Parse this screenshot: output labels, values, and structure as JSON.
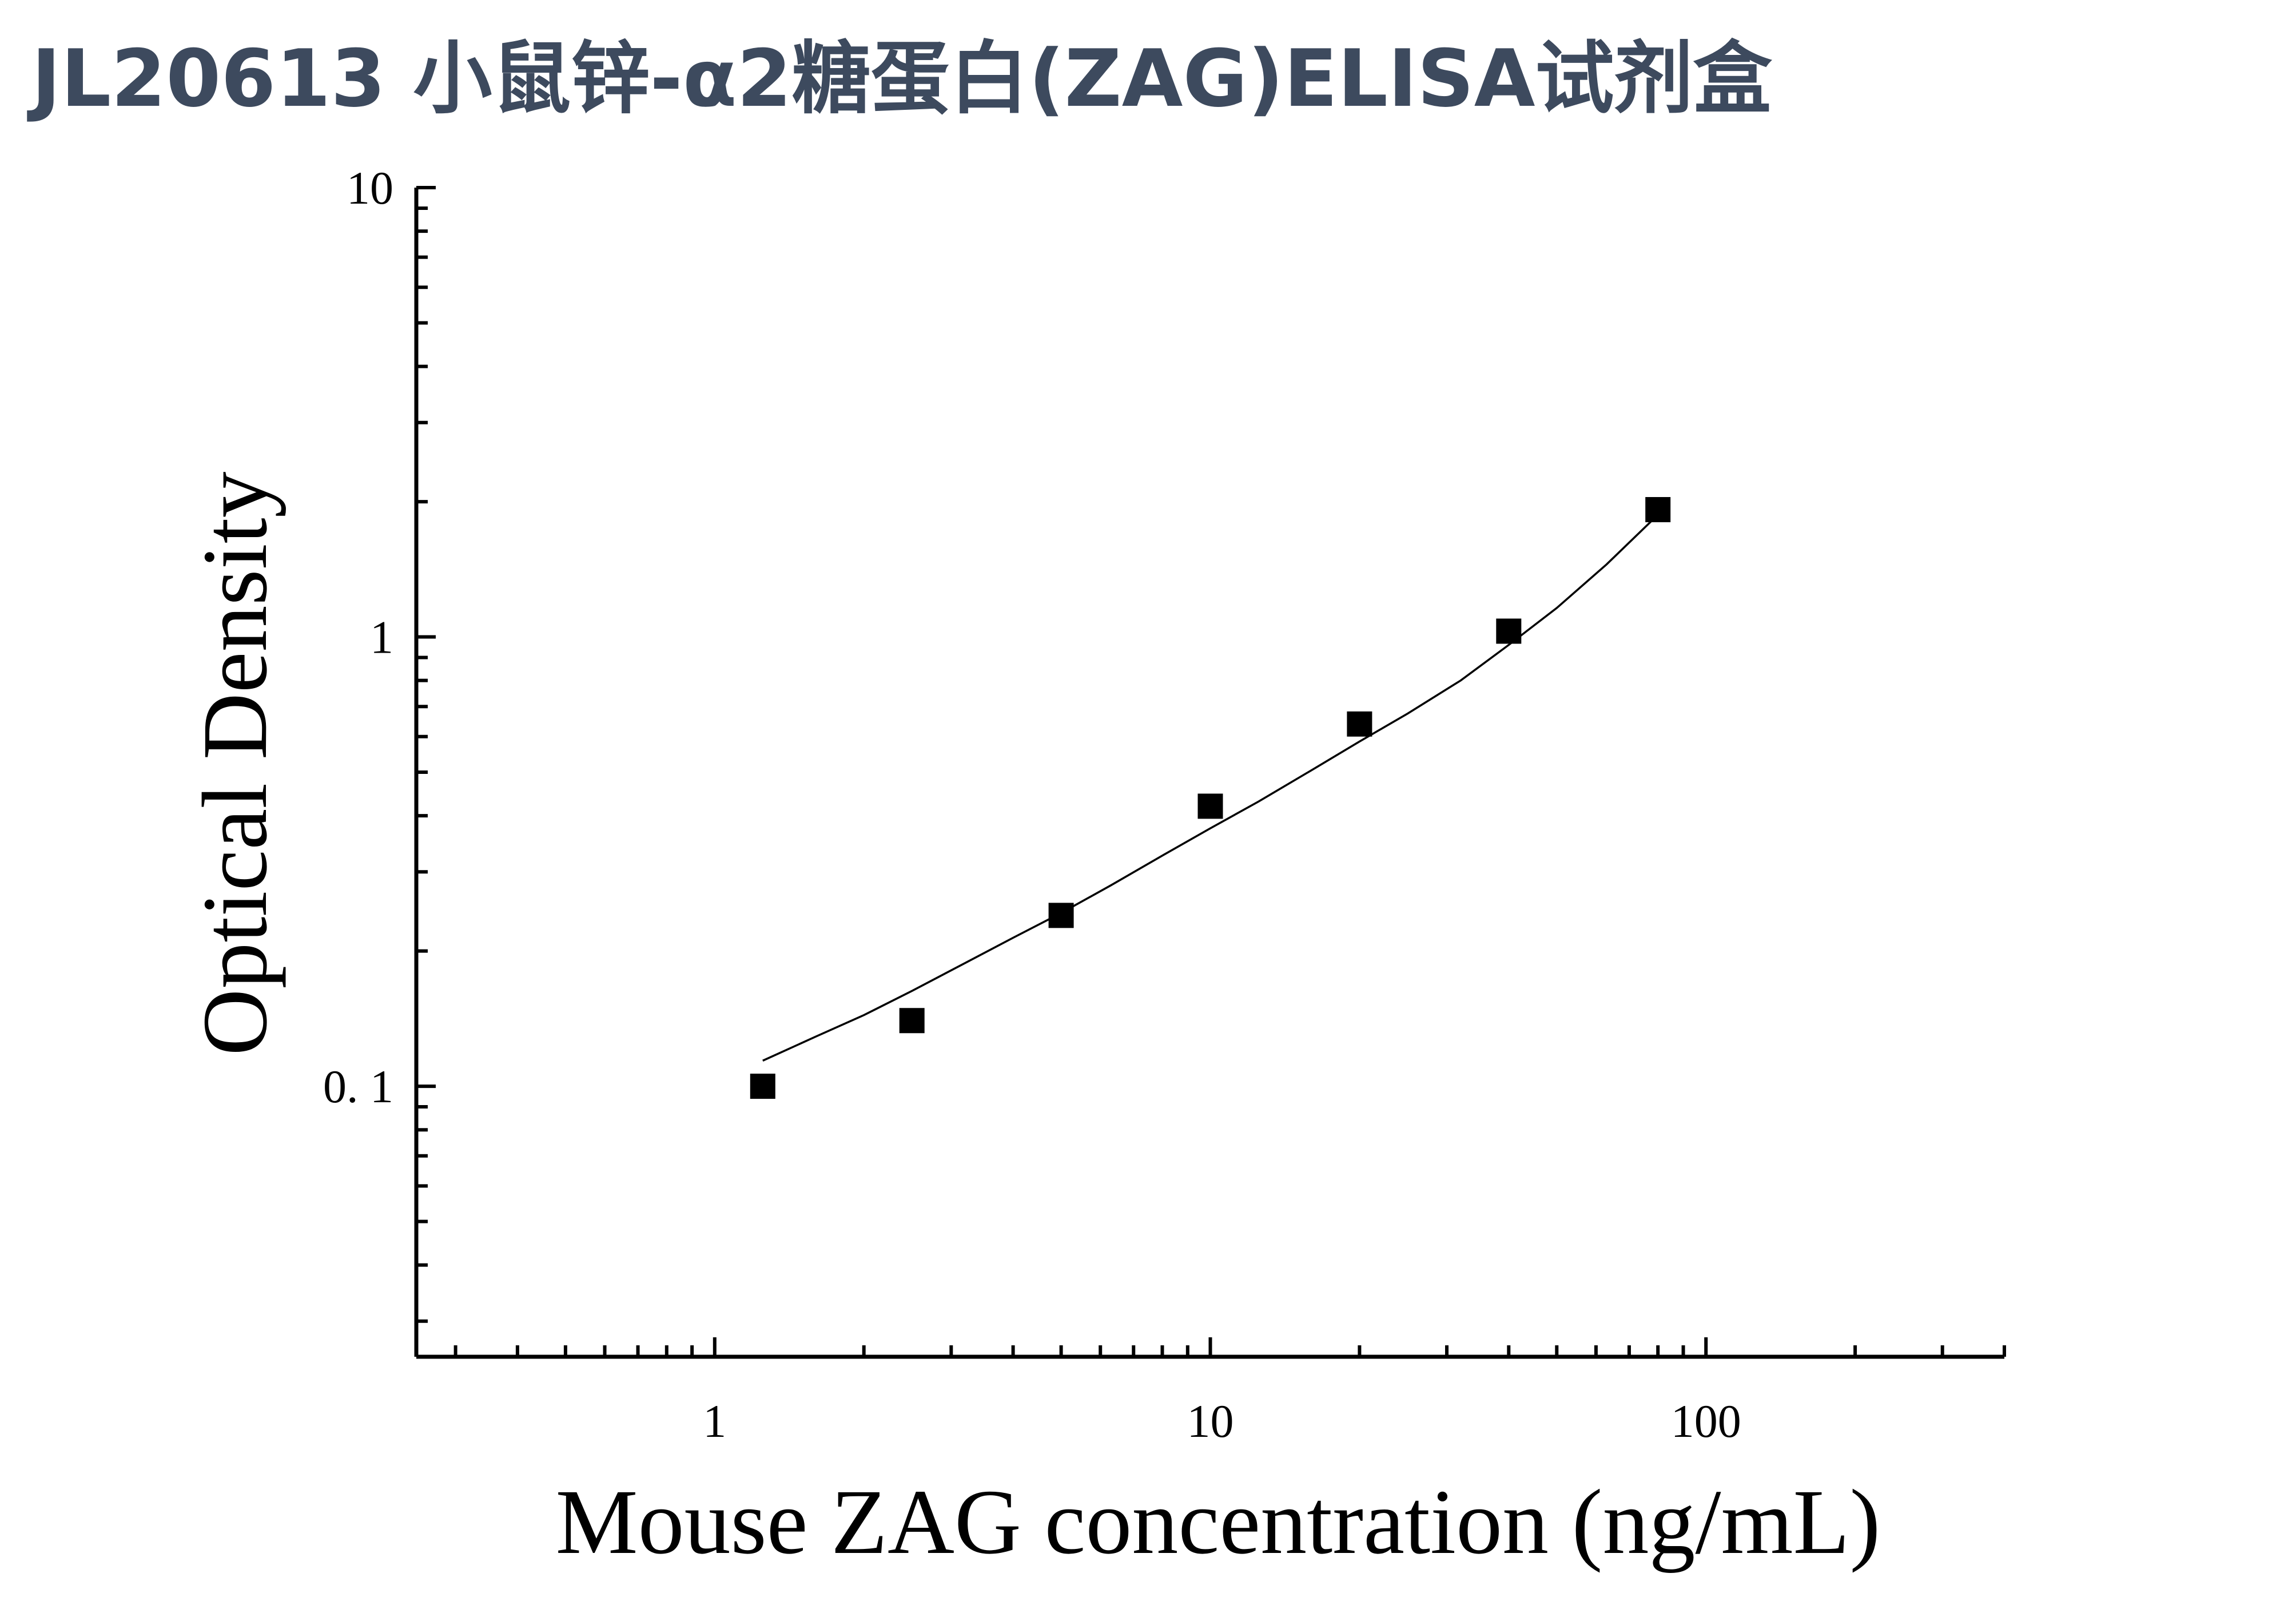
{
  "chart_data": {
    "type": "scatter",
    "title": "JL20613 小鼠锌-α2糖蛋白(ZAG)ELISA试剂盒",
    "xlabel": "Mouse ZAG concentration (ng/mL)",
    "ylabel": "Optical Density",
    "xscale": "log",
    "yscale": "log",
    "xlim": [
      0.25,
      400
    ],
    "ylim": [
      0.025,
      10
    ],
    "x_ticks": [
      1,
      10,
      100
    ],
    "x_tick_labels": [
      "1",
      "10",
      "100"
    ],
    "y_ticks": [
      0.1,
      1,
      10
    ],
    "y_tick_labels": [
      "0. 1",
      "1",
      "10"
    ],
    "grid": false,
    "legend": "none",
    "series": [
      {
        "marker": "square",
        "color": "#000000",
        "x": [
          1.25,
          2.5,
          5,
          10,
          20,
          40,
          80
        ],
        "y": [
          0.1,
          0.14,
          0.24,
          0.42,
          0.64,
          1.03,
          1.92
        ]
      }
    ],
    "fit_curve": {
      "color": "#000000",
      "x": [
        1.25,
        1.6,
        2,
        2.5,
        3.2,
        4,
        5,
        6.3,
        8,
        10,
        12.5,
        16,
        20,
        25,
        32,
        40,
        50,
        63,
        80
      ],
      "y": [
        0.114,
        0.129,
        0.144,
        0.163,
        0.188,
        0.214,
        0.243,
        0.28,
        0.326,
        0.375,
        0.43,
        0.505,
        0.585,
        0.675,
        0.8,
        0.96,
        1.16,
        1.45,
        1.87
      ]
    },
    "colors": {
      "title": "#3d4a5e",
      "axis": "#000000"
    }
  }
}
